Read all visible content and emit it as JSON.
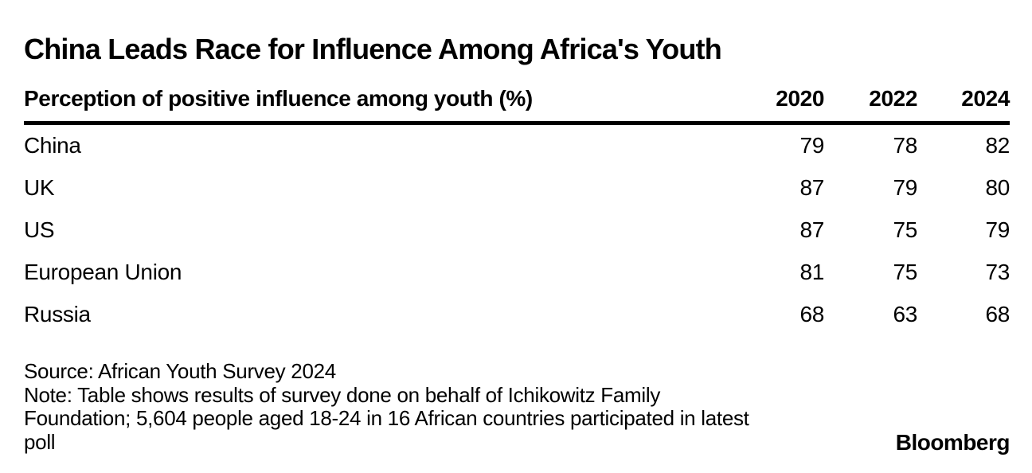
{
  "chart_data": {
    "type": "table",
    "title": "China Leads Race for Influence Among Africa's Youth",
    "subtitle": "Perception of positive influence among youth (%)",
    "columns": [
      "2020",
      "2022",
      "2024"
    ],
    "rows": [
      {
        "label": "China",
        "values": [
          79,
          78,
          82
        ]
      },
      {
        "label": "UK",
        "values": [
          87,
          79,
          80
        ]
      },
      {
        "label": "US",
        "values": [
          87,
          75,
          79
        ]
      },
      {
        "label": "European Union",
        "values": [
          81,
          75,
          73
        ]
      },
      {
        "label": "Russia",
        "values": [
          68,
          63,
          68
        ]
      }
    ],
    "source": "Source: African Youth Survey 2024",
    "note": "Note: Table shows results of survey done on behalf of Ichikowitz Family Foundation; 5,604 people aged 18-24 in 16 African countries participated in latest poll"
  },
  "footer": {
    "note_lines": [
      "Note: Table shows results of survey done on behalf of Ichikowitz Family",
      "Foundation; 5,604 people aged 18-24 in 16 African countries participated in latest",
      "poll"
    ],
    "brand": "Bloomberg"
  },
  "colors": {
    "text": "#000000",
    "background": "#ffffff"
  }
}
